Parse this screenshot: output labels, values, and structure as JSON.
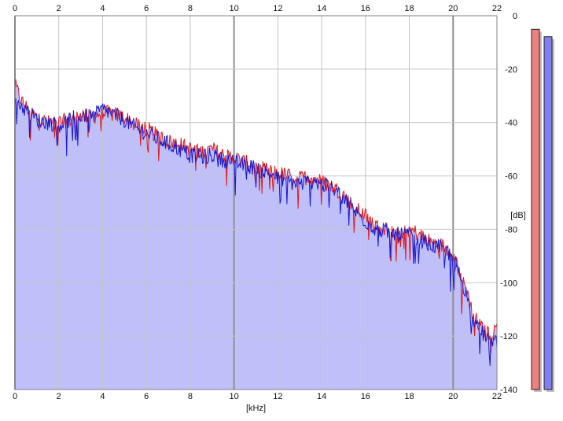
{
  "chart_data": {
    "type": "area",
    "xlabel": "[kHz]",
    "ylabel": "[dB]",
    "xlim": [
      0,
      22
    ],
    "ylim": [
      -140,
      0
    ],
    "x_ticks": [
      0,
      2,
      4,
      6,
      8,
      10,
      12,
      14,
      16,
      18,
      20,
      22
    ],
    "y_ticks": [
      0,
      -20,
      -40,
      -60,
      -80,
      -100,
      -120,
      -140
    ],
    "grid": true,
    "series": [
      {
        "color": "#e01818",
        "points": [
          [
            0.0,
            -26
          ],
          [
            0.3,
            -32
          ],
          [
            0.6,
            -35
          ],
          [
            1.0,
            -38
          ],
          [
            1.5,
            -40
          ],
          [
            2.0,
            -40
          ],
          [
            2.5,
            -39
          ],
          [
            3.0,
            -37
          ],
          [
            3.5,
            -38
          ],
          [
            4.0,
            -36
          ],
          [
            4.5,
            -37
          ],
          [
            5.0,
            -38
          ],
          [
            5.5,
            -41
          ],
          [
            6.0,
            -42
          ],
          [
            6.5,
            -45
          ],
          [
            7.0,
            -47
          ],
          [
            7.5,
            -48
          ],
          [
            8.0,
            -50
          ],
          [
            8.5,
            -51
          ],
          [
            9.0,
            -50
          ],
          [
            9.5,
            -52
          ],
          [
            10.0,
            -53
          ],
          [
            10.5,
            -55
          ],
          [
            11.0,
            -56
          ],
          [
            11.5,
            -58
          ],
          [
            12.0,
            -59
          ],
          [
            12.5,
            -60
          ],
          [
            13.0,
            -61
          ],
          [
            13.5,
            -60
          ],
          [
            14.0,
            -62
          ],
          [
            14.5,
            -64
          ],
          [
            15.0,
            -67
          ],
          [
            15.5,
            -72
          ],
          [
            16.0,
            -75
          ],
          [
            16.5,
            -79
          ],
          [
            17.0,
            -80
          ],
          [
            17.5,
            -81
          ],
          [
            18.0,
            -80
          ],
          [
            18.5,
            -82
          ],
          [
            19.0,
            -85
          ],
          [
            19.5,
            -86
          ],
          [
            20.0,
            -89
          ],
          [
            20.3,
            -96
          ],
          [
            20.6,
            -102
          ],
          [
            20.9,
            -112
          ],
          [
            21.2,
            -116
          ],
          [
            21.5,
            -119
          ],
          [
            21.8,
            -118
          ],
          [
            22.0,
            -117
          ]
        ]
      },
      {
        "color": "#1818d0",
        "points": [
          [
            0.0,
            -30
          ],
          [
            0.3,
            -34
          ],
          [
            0.6,
            -36
          ],
          [
            1.0,
            -39
          ],
          [
            1.5,
            -40
          ],
          [
            2.0,
            -41
          ],
          [
            2.5,
            -39
          ],
          [
            3.0,
            -37
          ],
          [
            3.5,
            -38
          ],
          [
            4.0,
            -35
          ],
          [
            4.5,
            -37
          ],
          [
            5.0,
            -39
          ],
          [
            5.5,
            -42
          ],
          [
            6.0,
            -44
          ],
          [
            6.5,
            -46
          ],
          [
            7.0,
            -48
          ],
          [
            7.5,
            -50
          ],
          [
            8.0,
            -52
          ],
          [
            8.5,
            -53
          ],
          [
            9.0,
            -52
          ],
          [
            9.5,
            -54
          ],
          [
            10.0,
            -55
          ],
          [
            10.5,
            -56
          ],
          [
            11.0,
            -57
          ],
          [
            11.5,
            -59
          ],
          [
            12.0,
            -60
          ],
          [
            12.5,
            -62
          ],
          [
            13.0,
            -63
          ],
          [
            13.5,
            -62
          ],
          [
            14.0,
            -63
          ],
          [
            14.5,
            -65
          ],
          [
            15.0,
            -68
          ],
          [
            15.5,
            -73
          ],
          [
            16.0,
            -77
          ],
          [
            16.5,
            -80
          ],
          [
            17.0,
            -81
          ],
          [
            17.5,
            -82
          ],
          [
            18.0,
            -82
          ],
          [
            18.5,
            -84
          ],
          [
            19.0,
            -86
          ],
          [
            19.5,
            -87
          ],
          [
            20.0,
            -90
          ],
          [
            20.3,
            -97
          ],
          [
            20.6,
            -104
          ],
          [
            20.9,
            -114
          ],
          [
            21.2,
            -118
          ],
          [
            21.5,
            -120
          ],
          [
            21.8,
            -121
          ],
          [
            22.0,
            -122
          ]
        ]
      }
    ],
    "fill_color": "#bfbffa",
    "level_meters": [
      {
        "color": "#f08080",
        "level": 0.98
      },
      {
        "color": "#8080f0",
        "level": 0.96
      }
    ]
  }
}
